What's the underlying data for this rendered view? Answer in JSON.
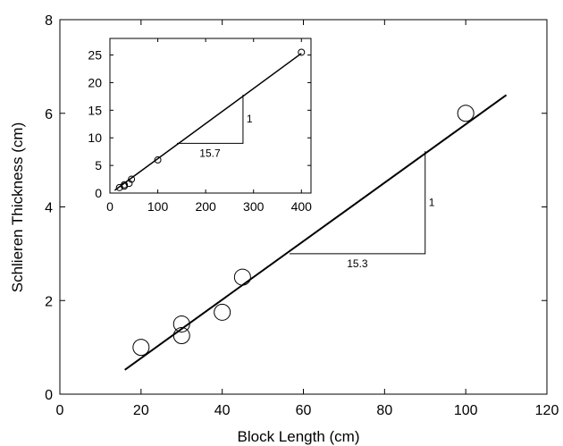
{
  "chart_data": [
    {
      "type": "scatter",
      "id": "main",
      "xlabel": "Block Length (cm)",
      "ylabel": "Schlieren Thickness (cm)",
      "xlim": [
        0,
        120
      ],
      "ylim": [
        0,
        8
      ],
      "xticks": [
        0,
        20,
        40,
        60,
        80,
        100,
        120
      ],
      "yticks": [
        0,
        2,
        4,
        6,
        8
      ],
      "points": [
        {
          "x": 20,
          "y": 1.0
        },
        {
          "x": 30,
          "y": 1.5
        },
        {
          "x": 30,
          "y": 1.25
        },
        {
          "x": 40,
          "y": 1.75
        },
        {
          "x": 45,
          "y": 2.5
        },
        {
          "x": 100,
          "y": 6.0
        }
      ],
      "fit_line": {
        "x1": 16,
        "y1": 0.52,
        "x2": 110,
        "y2": 6.39
      },
      "slope_triangle": {
        "x_start": 56.6,
        "x_end": 90,
        "y_base": 3.0,
        "y_top": 5.19
      },
      "annotations": {
        "run_label": "15.3",
        "rise_label": "1"
      },
      "grid": false
    },
    {
      "type": "scatter",
      "id": "inset",
      "xlim": [
        0,
        420
      ],
      "ylim": [
        0,
        28
      ],
      "xticks": [
        0,
        100,
        200,
        300,
        400
      ],
      "yticks": [
        0,
        5,
        10,
        15,
        20,
        25
      ],
      "points": [
        {
          "x": 20,
          "y": 1.0
        },
        {
          "x": 30,
          "y": 1.5
        },
        {
          "x": 30,
          "y": 1.25
        },
        {
          "x": 40,
          "y": 1.75
        },
        {
          "x": 45,
          "y": 2.5
        },
        {
          "x": 100,
          "y": 6.0
        },
        {
          "x": 400,
          "y": 25.5
        }
      ],
      "fit_line": {
        "x1": 10,
        "y1": 0.5,
        "x2": 400,
        "y2": 25.3
      },
      "slope_triangle": {
        "x_start": 140,
        "x_end": 278,
        "y_base": 9.0,
        "y_top": 17.8
      },
      "annotations": {
        "run_label": "15.7",
        "rise_label": "1"
      },
      "grid": false
    }
  ]
}
